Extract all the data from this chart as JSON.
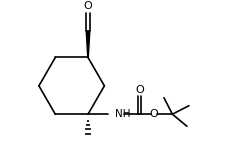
{
  "bg_color": "#ffffff",
  "line_color": "#000000",
  "lw": 1.2,
  "fs": 7.5,
  "figsize": [
    2.5,
    1.52
  ],
  "dpi": 100,
  "xlim": [
    0.0,
    10.0
  ],
  "ylim": [
    0.5,
    6.5
  ]
}
